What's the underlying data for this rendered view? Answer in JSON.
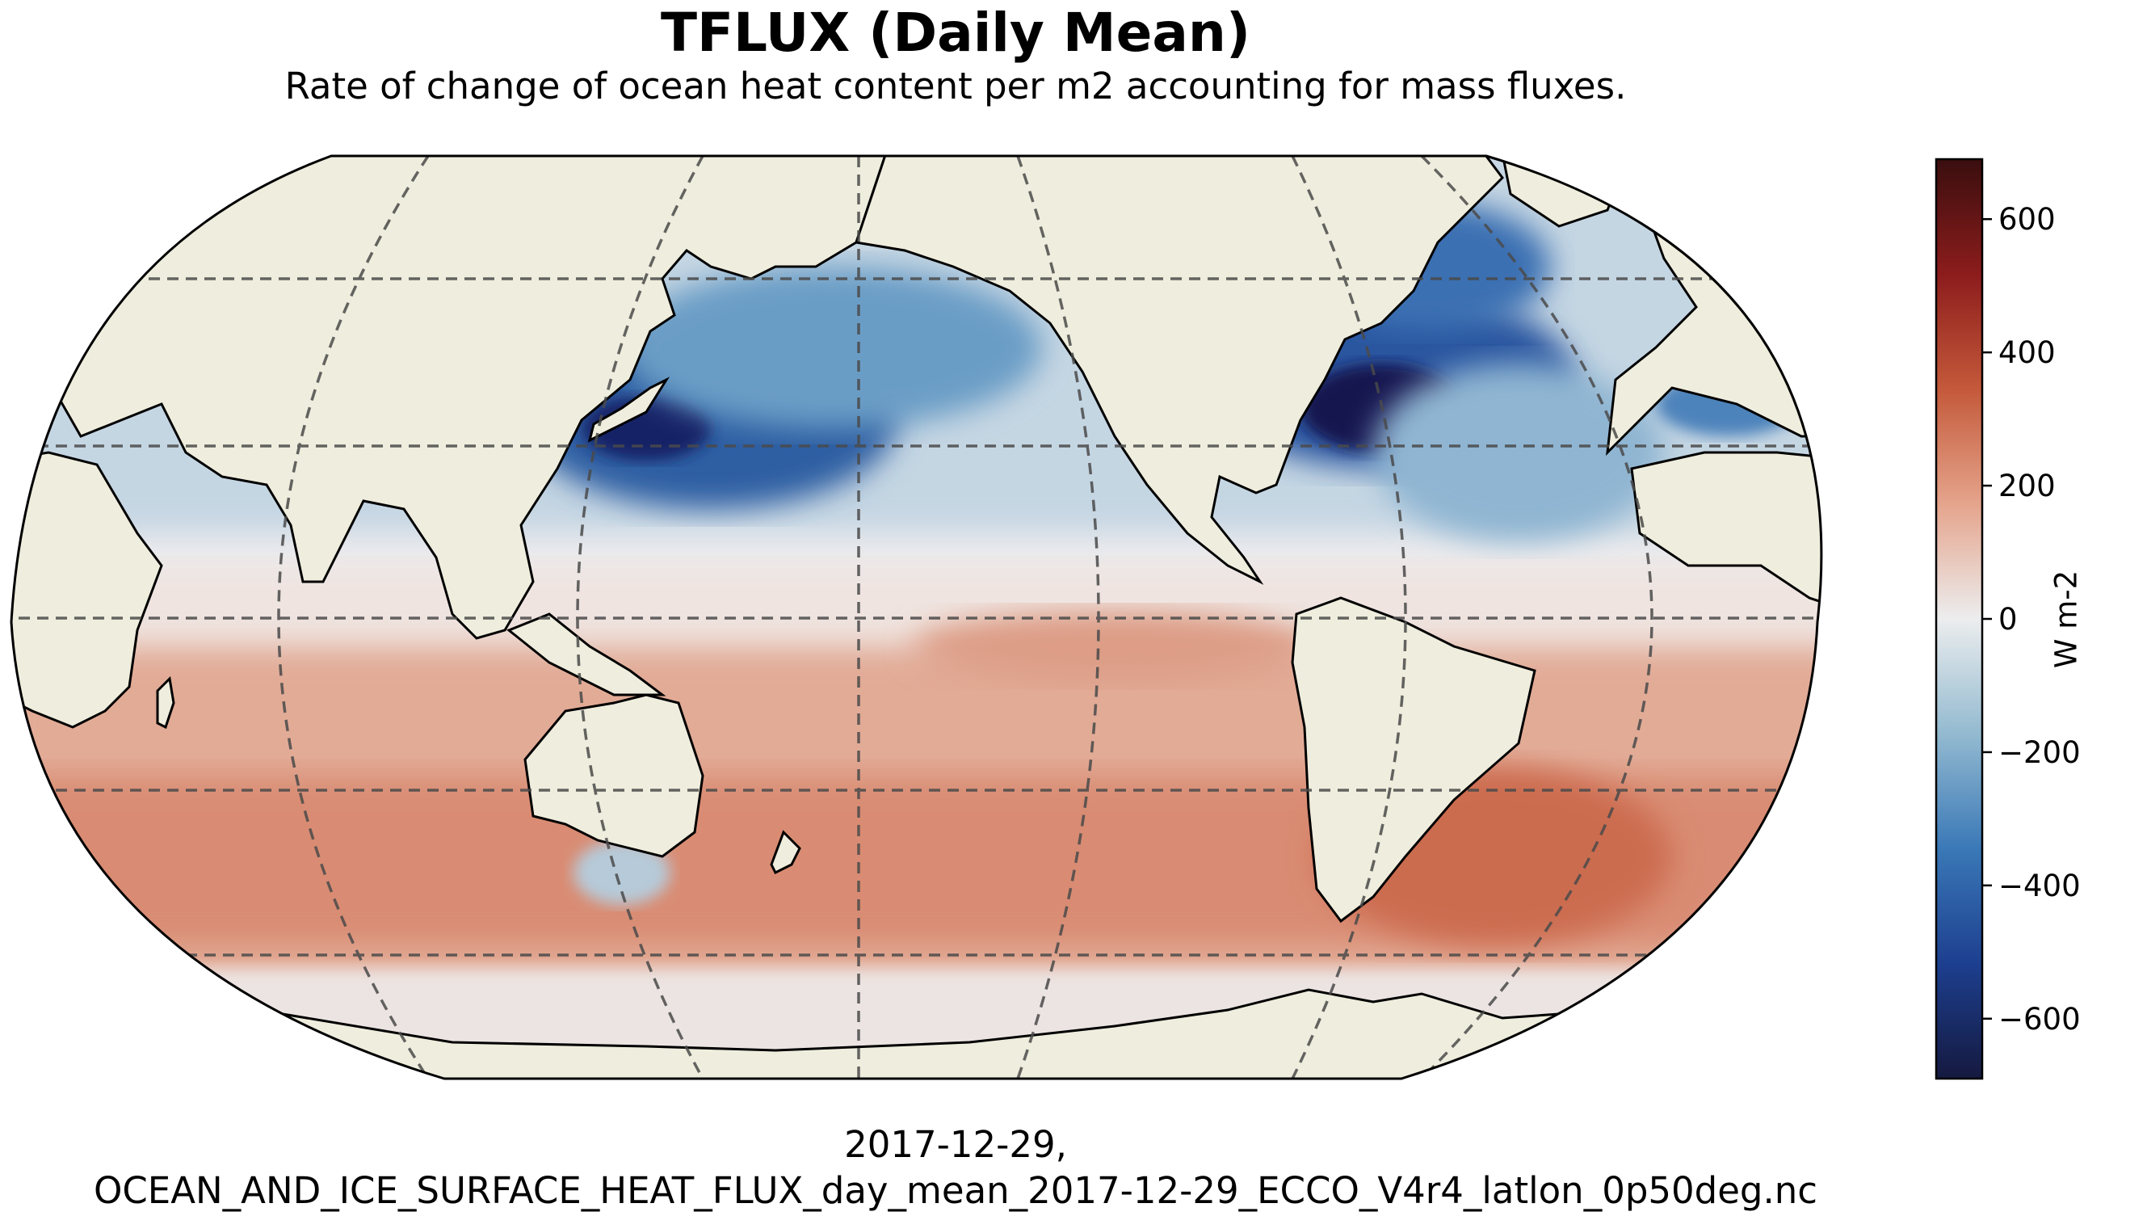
{
  "title": "TFLUX (Daily Mean)",
  "subtitle": "Rate of change of ocean heat content per m2 accounting for mass fluxes.",
  "caption": {
    "line1": "2017-12-29,",
    "line2": "OCEAN_AND_ICE_SURFACE_HEAT_FLUX_day_mean_2017-12-29_ECCO_V4r4_latlon_0p50deg.nc"
  },
  "map": {
    "projection": "Robinson",
    "central_longitude": 180,
    "gridlines": "dashed",
    "land_color": "#efeddd",
    "coastline_color": "#000000"
  },
  "colorbar": {
    "label": "W m-2",
    "range": [
      -690,
      690
    ],
    "ticks": [
      {
        "value": 600,
        "label": "600"
      },
      {
        "value": 400,
        "label": "400"
      },
      {
        "value": 200,
        "label": "200"
      },
      {
        "value": 0,
        "label": "0"
      },
      {
        "value": -200,
        "label": "−200"
      },
      {
        "value": -400,
        "label": "−400"
      },
      {
        "value": -600,
        "label": "−600"
      }
    ],
    "colormap": [
      "#15193f",
      "#1d3f8f",
      "#3a78b7",
      "#93bad0",
      "#ecedee",
      "#e5a48c",
      "#c4593a",
      "#8c1c1c",
      "#3a0e0e"
    ]
  }
}
